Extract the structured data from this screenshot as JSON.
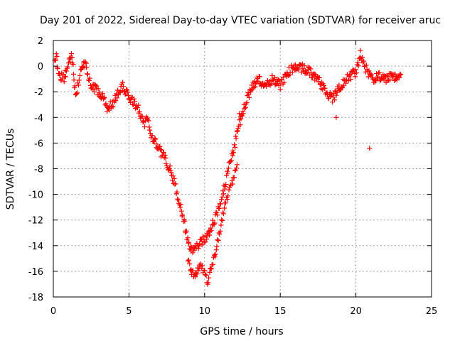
{
  "chart_data": {
    "type": "scatter",
    "title": "Day 201 of 2022, Sidereal Day-to-day VTEC variation (SDTVAR) for receiver aruc",
    "xlabel": "GPS time / hours",
    "ylabel": "SDTVAR / TECUs",
    "xlim": [
      0,
      25
    ],
    "ylim": [
      -18,
      2
    ],
    "xticks": [
      0,
      5,
      10,
      15,
      20,
      25
    ],
    "yticks": [
      2,
      0,
      -2,
      -4,
      -6,
      -8,
      -10,
      -12,
      -14,
      -16,
      -18
    ],
    "grid": true,
    "marker": "+",
    "color": "#ff0000",
    "series": [
      {
        "name": "SDTVAR",
        "trend": [
          [
            0.1,
            0.5
          ],
          [
            0.2,
            1.0
          ],
          [
            0.3,
            -0.5
          ],
          [
            0.7,
            -1.0
          ],
          [
            1.2,
            1.0
          ],
          [
            1.3,
            0.2
          ],
          [
            1.4,
            -1.5
          ],
          [
            1.5,
            -2.3
          ],
          [
            1.8,
            -0.5
          ],
          [
            2.0,
            0.5
          ],
          [
            2.2,
            -0.2
          ],
          [
            2.5,
            -1.5
          ],
          [
            3.0,
            -2.0
          ],
          [
            3.3,
            -2.5
          ],
          [
            3.6,
            -3.3
          ],
          [
            4.0,
            -2.8
          ],
          [
            4.3,
            -2.0
          ],
          [
            4.6,
            -1.5
          ],
          [
            4.8,
            -2.0
          ],
          [
            5.0,
            -2.5
          ],
          [
            5.3,
            -2.8
          ],
          [
            5.7,
            -3.5
          ],
          [
            6.0,
            -4.5
          ],
          [
            6.2,
            -4.0
          ],
          [
            6.5,
            -5.5
          ],
          [
            7.0,
            -6.5
          ],
          [
            7.5,
            -7.5
          ],
          [
            8.0,
            -9.0
          ],
          [
            8.3,
            -10.5
          ],
          [
            8.6,
            -12.0
          ],
          [
            8.8,
            -13.0
          ],
          [
            9.0,
            -14.0
          ],
          [
            9.2,
            -14.5
          ],
          [
            9.5,
            -14.0
          ],
          [
            10.0,
            -13.5
          ],
          [
            10.5,
            -12.5
          ],
          [
            10.8,
            -11.5
          ],
          [
            11.2,
            -10.0
          ],
          [
            11.5,
            -8.5
          ],
          [
            11.8,
            -7.0
          ],
          [
            12.0,
            -6.0
          ],
          [
            12.3,
            -4.5
          ],
          [
            12.7,
            -3.0
          ],
          [
            13.0,
            -2.0
          ],
          [
            13.5,
            -1.0
          ],
          [
            14.0,
            -1.5
          ],
          [
            14.5,
            -1.0
          ],
          [
            15.0,
            -1.5
          ],
          [
            15.5,
            -0.5
          ],
          [
            16.0,
            0.0
          ],
          [
            16.5,
            -0.2
          ],
          [
            17.0,
            -0.5
          ],
          [
            17.5,
            -1.0
          ],
          [
            18.0,
            -2.0
          ],
          [
            18.5,
            -2.5
          ],
          [
            19.0,
            -1.5
          ],
          [
            19.5,
            -0.8
          ],
          [
            20.0,
            -0.5
          ],
          [
            20.3,
            1.0
          ],
          [
            20.6,
            0.0
          ],
          [
            21.0,
            -1.0
          ],
          [
            21.5,
            -0.8
          ],
          [
            22.0,
            -1.0
          ],
          [
            22.5,
            -0.8
          ],
          [
            23.0,
            -1.0
          ]
        ],
        "secondary_trend": [
          [
            8.9,
            -15.0
          ],
          [
            9.1,
            -16.0
          ],
          [
            9.4,
            -16.3
          ],
          [
            9.8,
            -15.5
          ],
          [
            10.2,
            -16.8
          ],
          [
            10.5,
            -15.5
          ],
          [
            10.9,
            -13.5
          ],
          [
            11.3,
            -11.0
          ],
          [
            11.7,
            -9.5
          ],
          [
            12.2,
            -7.5
          ]
        ],
        "scattered_points": [
          [
            18.7,
            -4.0
          ],
          [
            20.9,
            -6.4
          ],
          [
            12.3,
            -3.7
          ],
          [
            12.4,
            -4.1
          ]
        ]
      }
    ]
  }
}
